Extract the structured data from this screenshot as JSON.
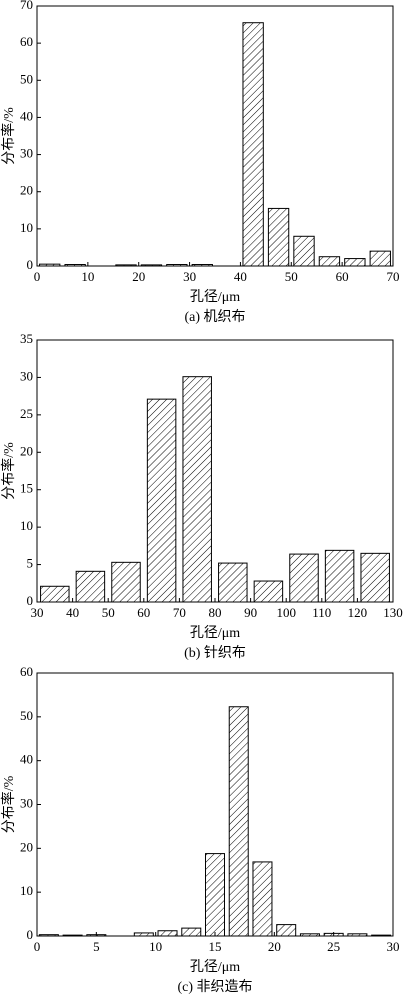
{
  "chart_data": [
    {
      "type": "bar",
      "ylabel": "分布率/%",
      "xlabel": "孔径/μm",
      "caption": "(a) 机织布",
      "x": [
        2.5,
        7.5,
        12.5,
        17.5,
        22.5,
        27.5,
        32.5,
        37.5,
        42.5,
        47.5,
        52.5,
        57.5,
        62.5,
        67.5
      ],
      "values": [
        0.5,
        0.4,
        0,
        0.3,
        0.3,
        0.4,
        0.4,
        0,
        65.5,
        15.5,
        8,
        2.5,
        2,
        4
      ],
      "xlim": [
        0,
        70
      ],
      "ylim": [
        0,
        70
      ],
      "xticks": [
        0,
        10,
        20,
        30,
        40,
        50,
        60,
        70
      ],
      "yticks": [
        0,
        10,
        20,
        30,
        40,
        50,
        60,
        70
      ]
    },
    {
      "type": "bar",
      "ylabel": "分布率/%",
      "xlabel": "孔径/μm",
      "caption": "(b) 针织布",
      "x": [
        35,
        45,
        55,
        65,
        75,
        85,
        95,
        105,
        115,
        125
      ],
      "values": [
        2.1,
        4.1,
        5.3,
        27.1,
        30.1,
        5.2,
        2.8,
        6.4,
        6.9,
        6.5
      ],
      "xlim": [
        30,
        130
      ],
      "ylim": [
        0,
        35
      ],
      "xticks": [
        30,
        40,
        50,
        60,
        70,
        80,
        90,
        100,
        110,
        120,
        130
      ],
      "yticks": [
        0,
        5,
        10,
        15,
        20,
        25,
        30,
        35
      ]
    },
    {
      "type": "bar",
      "ylabel": "分布率/%",
      "xlabel": "孔径/μm",
      "caption": "(c) 非织造布",
      "x": [
        1,
        3,
        5,
        7,
        9,
        11,
        13,
        15,
        17,
        19,
        21,
        23,
        25,
        27,
        29
      ],
      "values": [
        0.3,
        0.2,
        0.3,
        0,
        0.7,
        1.2,
        1.8,
        18.8,
        52.3,
        16.9,
        2.6,
        0.5,
        0.6,
        0.5,
        0.2
      ],
      "xlim": [
        0,
        30
      ],
      "ylim": [
        0,
        60
      ],
      "xticks": [
        0,
        5,
        10,
        15,
        20,
        25,
        30
      ],
      "yticks": [
        0,
        10,
        20,
        30,
        40,
        50,
        60
      ]
    }
  ]
}
